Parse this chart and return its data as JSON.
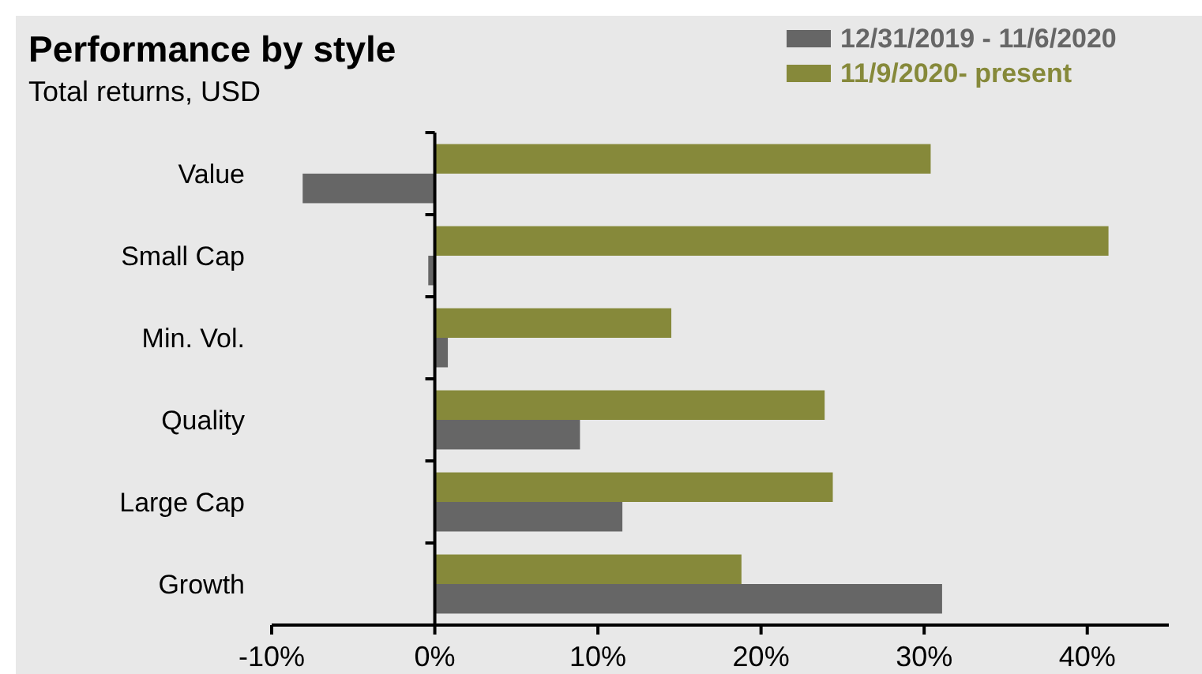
{
  "chart_data": {
    "type": "bar",
    "orientation": "horizontal",
    "title": "Performance by style",
    "subtitle": "Total returns, USD",
    "categories": [
      "Value",
      "Small Cap",
      "Min. Vol.",
      "Quality",
      "Large Cap",
      "Growth"
    ],
    "series": [
      {
        "name": "12/31/2019 - 11/6/2020",
        "color": "#666666",
        "values": [
          -8.1,
          -0.4,
          0.8,
          8.9,
          11.5,
          31.1
        ]
      },
      {
        "name": "11/9/2020- present",
        "color": "#86893a",
        "values": [
          30.4,
          41.3,
          14.5,
          23.9,
          24.4,
          18.8
        ]
      }
    ],
    "xlim": [
      -10,
      45
    ],
    "xticks": [
      {
        "value": -10,
        "label": "-10%"
      },
      {
        "value": 0,
        "label": "0%"
      },
      {
        "value": 10,
        "label": "10%"
      },
      {
        "value": 20,
        "label": "20%"
      },
      {
        "value": 30,
        "label": "30%"
      },
      {
        "value": 40,
        "label": "40%"
      }
    ],
    "legend": "top right"
  }
}
